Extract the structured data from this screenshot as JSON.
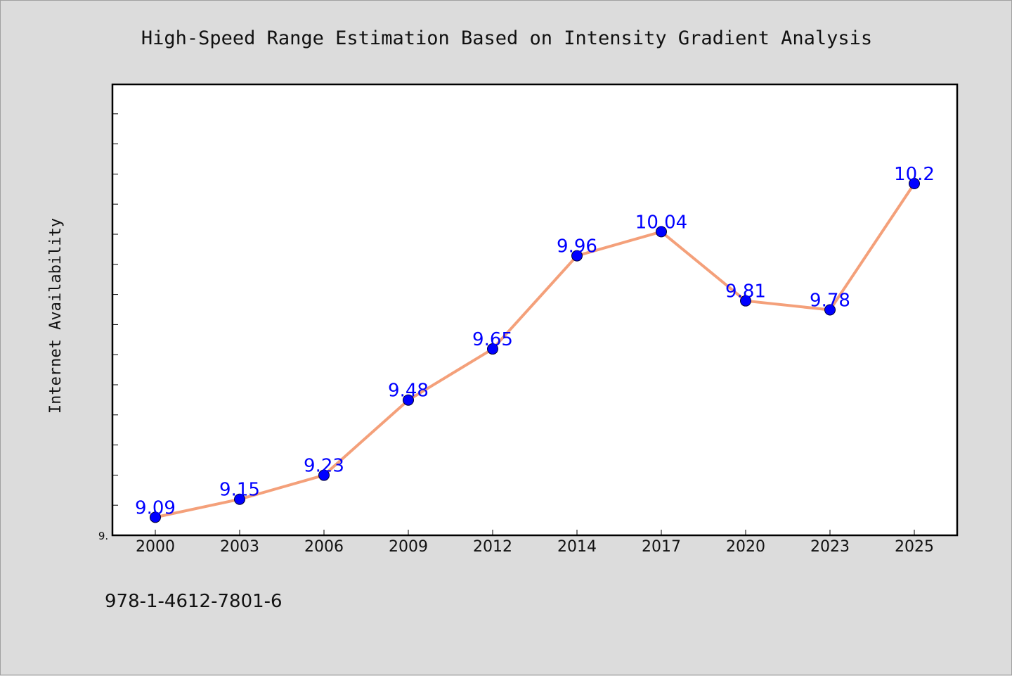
{
  "colors": {
    "background": "#dcdcdc",
    "plot_background": "#ffffff",
    "line": "#f4a07a",
    "marker": "#0000ff",
    "data_label": "#0000ff"
  },
  "footer_text": "978-1-4612-7801-6",
  "chart_data": {
    "type": "line",
    "title": "High-Speed Range Estimation Based on Intensity Gradient Analysis",
    "xlabel": "",
    "ylabel": "Internet Availability",
    "categories": [
      "2000",
      "2003",
      "2006",
      "2009",
      "2012",
      "2014",
      "2017",
      "2020",
      "2023",
      "2025"
    ],
    "values": [
      9.09,
      9.15,
      9.23,
      9.48,
      9.65,
      9.96,
      10.04,
      9.81,
      9.78,
      10.2
    ],
    "data_labels": [
      "9.09",
      "9.15",
      "9.23",
      "9.48",
      "9.65",
      "9.96",
      "10.04",
      "9.81",
      "9.78",
      "10.2"
    ],
    "ylim": [
      9.03,
      10.53
    ],
    "ytick_label_text": "9.",
    "grid": false,
    "legend": "none"
  }
}
